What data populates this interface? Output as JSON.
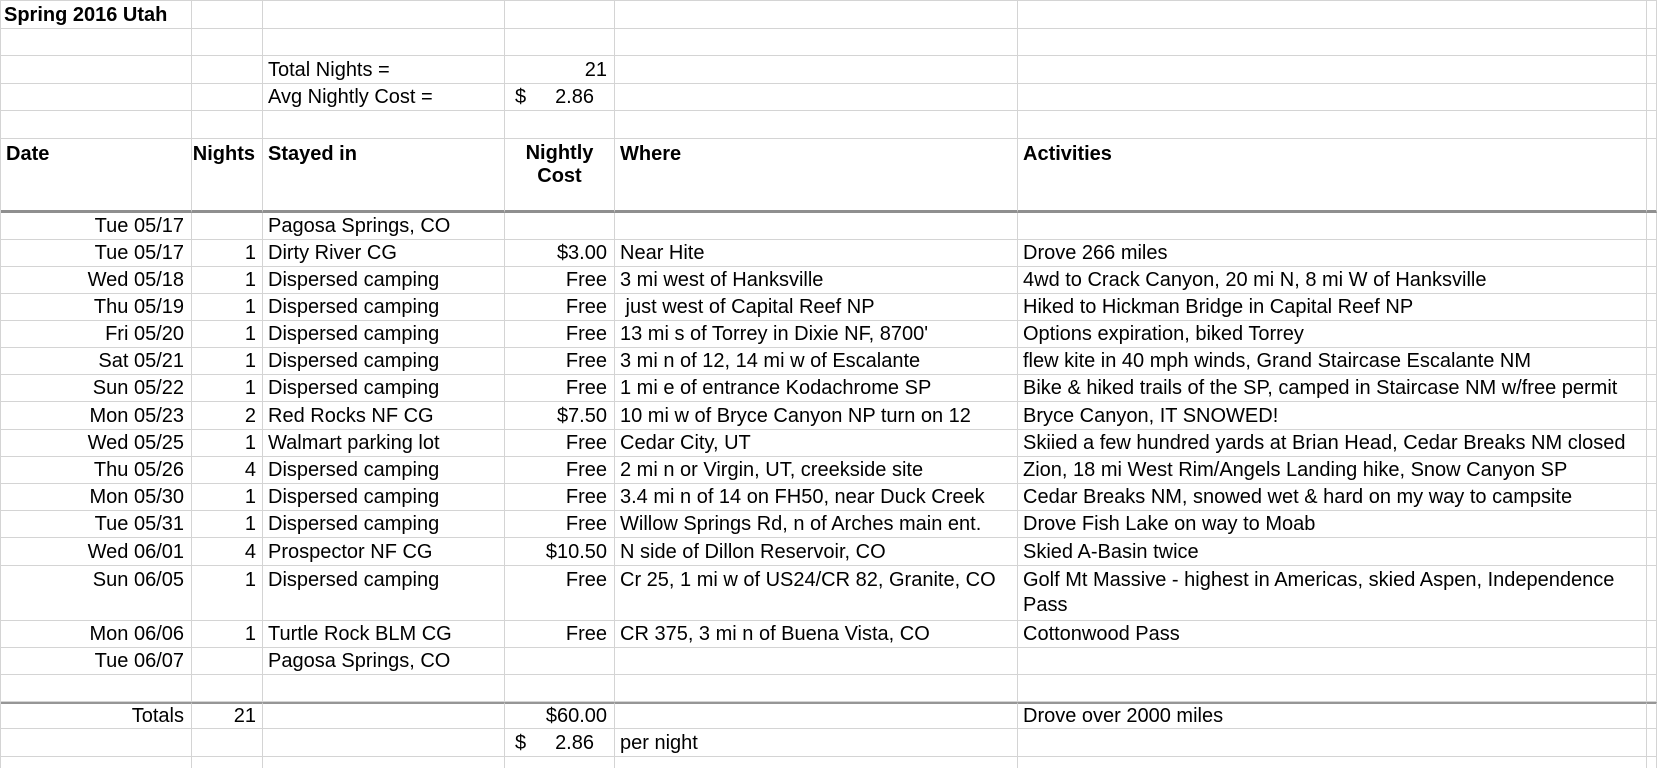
{
  "title": "Spring 2016 Utah",
  "summary": {
    "total_nights_label": "Total Nights =",
    "total_nights_value": "21",
    "avg_cost_label": "Avg Nightly Cost =",
    "avg_cost_currency": "$",
    "avg_cost_value": "2.86"
  },
  "table": {
    "headers": {
      "date": "Date",
      "nights": "Nights",
      "stayed_in": "Stayed in",
      "nightly_cost": "Nightly Cost",
      "where": "Where",
      "activities": "Activities"
    },
    "rows": [
      {
        "date": "Tue 05/17",
        "nights": "",
        "stayed_in": "Pagosa Springs, CO",
        "cost": "",
        "where": "",
        "activities": ""
      },
      {
        "date": "Tue 05/17",
        "nights": "1",
        "stayed_in": "Dirty River CG",
        "cost": "$3.00",
        "where": "Near Hite",
        "activities": "Drove 266 miles"
      },
      {
        "date": "Wed 05/18",
        "nights": "1",
        "stayed_in": "Dispersed camping",
        "cost": "Free",
        "where": "3 mi west of Hanksville",
        "activities": "4wd to Crack Canyon, 20 mi N, 8 mi W of Hanksville"
      },
      {
        "date": "Thu 05/19",
        "nights": "1",
        "stayed_in": "Dispersed camping",
        "cost": "Free",
        "where": " just west of Capital Reef NP",
        "activities": "Hiked to Hickman Bridge in Capital Reef NP"
      },
      {
        "date": "Fri 05/20",
        "nights": "1",
        "stayed_in": "Dispersed camping",
        "cost": "Free",
        "where": "13 mi s of Torrey in Dixie NF, 8700'",
        "activities": "Options expiration, biked Torrey"
      },
      {
        "date": "Sat 05/21",
        "nights": "1",
        "stayed_in": "Dispersed camping",
        "cost": "Free",
        "where": "3 mi n of 12, 14 mi w of Escalante",
        "activities": "flew kite in 40 mph winds, Grand Staircase Escalante NM"
      },
      {
        "date": "Sun 05/22",
        "nights": "1",
        "stayed_in": "Dispersed camping",
        "cost": "Free",
        "where": "1 mi e of entrance Kodachrome SP",
        "activities": "Bike & hiked trails of the SP, camped in Staircase NM w/free permit"
      },
      {
        "date": "Mon 05/23",
        "nights": "2",
        "stayed_in": "Red Rocks NF CG",
        "cost": "$7.50",
        "where": "10 mi w of Bryce Canyon NP turn on 12",
        "activities": "Bryce Canyon, IT SNOWED!"
      },
      {
        "date": "Wed 05/25",
        "nights": "1",
        "stayed_in": "Walmart parking lot",
        "cost": "Free",
        "where": "Cedar City, UT",
        "activities": "Skiied a few hundred yards at Brian Head, Cedar Breaks NM closed"
      },
      {
        "date": "Thu 05/26",
        "nights": "4",
        "stayed_in": "Dispersed camping",
        "cost": "Free",
        "where": "2 mi n or Virgin, UT, creekside site",
        "activities": "Zion, 18 mi West Rim/Angels Landing hike, Snow Canyon SP"
      },
      {
        "date": "Mon 05/30",
        "nights": "1",
        "stayed_in": "Dispersed camping",
        "cost": "Free",
        "where": "3.4 mi n of 14 on FH50, near Duck Creek",
        "activities": "Cedar Breaks NM, snowed wet & hard on my way to campsite"
      },
      {
        "date": "Tue 05/31",
        "nights": "1",
        "stayed_in": "Dispersed camping",
        "cost": "Free",
        "where": "Willow Springs Rd, n of Arches main ent.",
        "activities": "Drove Fish Lake on way to Moab"
      },
      {
        "date": "Wed 06/01",
        "nights": "4",
        "stayed_in": "Prospector NF CG",
        "cost": "$10.50",
        "where": "N side of Dillon Reservoir, CO",
        "activities": "Skied A-Basin twice"
      },
      {
        "date": "Sun 06/05",
        "nights": "1",
        "stayed_in": "Dispersed camping",
        "cost": "Free",
        "where": "Cr 25, 1 mi w of US24/CR 82, Granite, CO",
        "activities": "Golf Mt Massive - highest in Americas, skied Aspen, Independence Pass"
      },
      {
        "date": "Mon 06/06",
        "nights": "1",
        "stayed_in": "Turtle Rock BLM CG",
        "cost": "Free",
        "where": "CR 375, 3 mi n of Buena Vista, CO",
        "activities": "Cottonwood Pass"
      },
      {
        "date": "Tue 06/07",
        "nights": "",
        "stayed_in": "Pagosa Springs, CO",
        "cost": "",
        "where": "",
        "activities": ""
      }
    ],
    "totals": {
      "label": "Totals",
      "nights": "21",
      "cost": "$60.00",
      "activities": "Drove over 2000 miles"
    },
    "per_night": {
      "currency": "$",
      "value": "2.86",
      "note": "per night"
    }
  },
  "colors": {
    "background": "#ffffff",
    "text": "#000000",
    "gridline": "#d4d4d4",
    "header_thick_border": "#8f8f8f",
    "totals_top_border": "#969696"
  }
}
